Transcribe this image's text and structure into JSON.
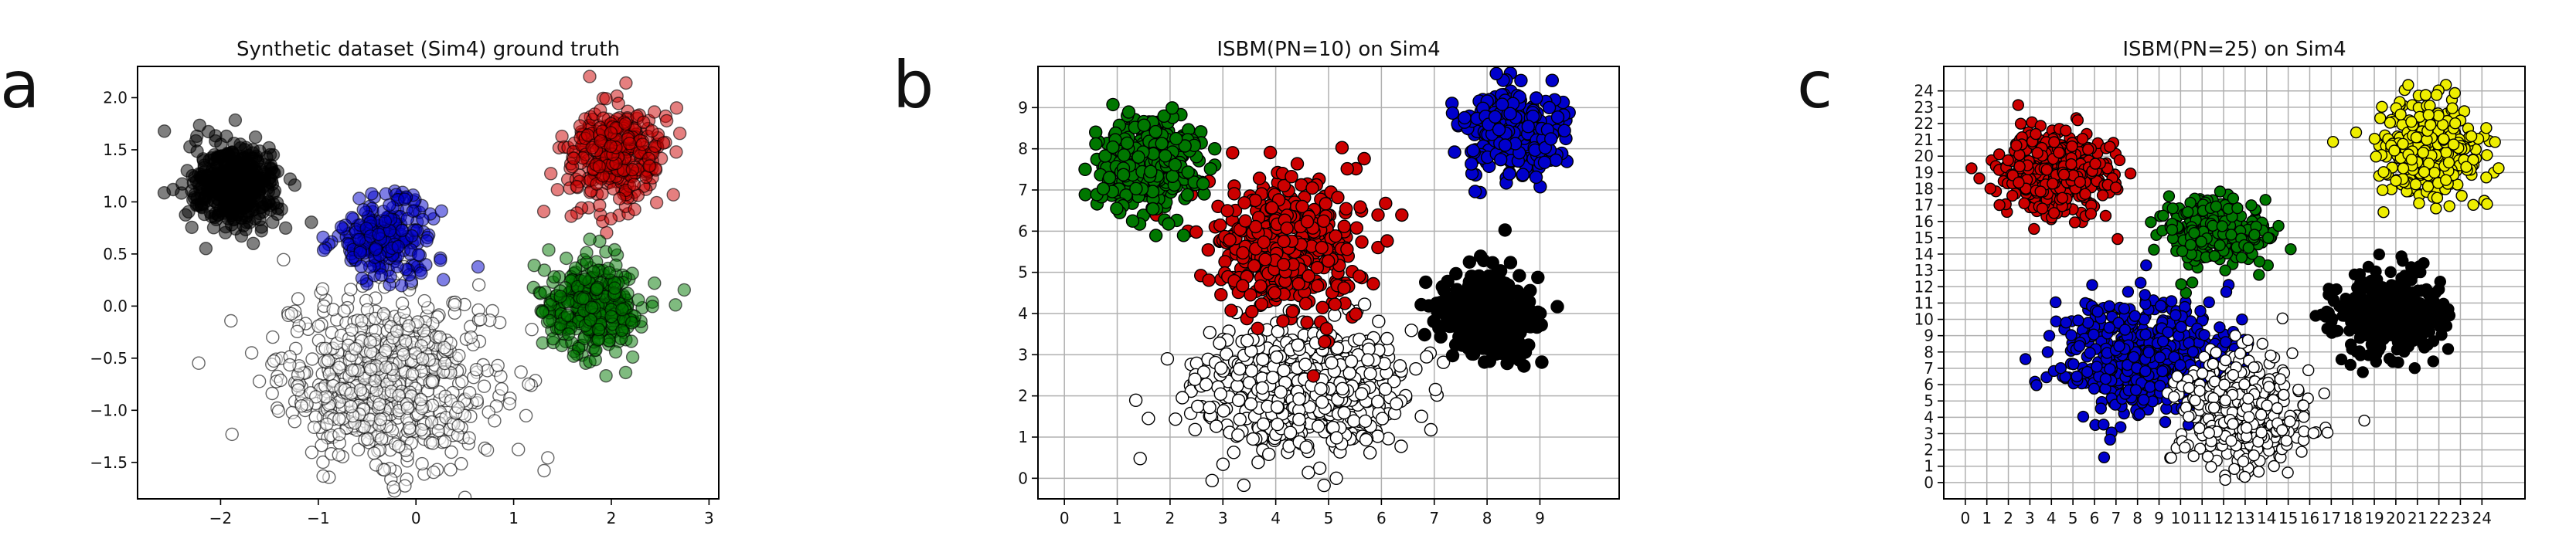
{
  "panel_labels": [
    "a",
    "b",
    "c"
  ],
  "chart_data": [
    {
      "type": "scatter",
      "title": "Synthetic dataset (Sim4)  ground truth",
      "xlabel": "",
      "ylabel": "",
      "xlim": [
        -2.85,
        3.1
      ],
      "ylim": [
        -1.85,
        2.3
      ],
      "xticks": [
        -2,
        -1,
        0,
        1,
        2,
        3
      ],
      "yticks": [
        -1.5,
        -1.0,
        -0.5,
        0.0,
        0.5,
        1.0,
        1.5,
        2.0
      ],
      "xtick_labels": [
        "−2",
        "−1",
        "0",
        "1",
        "2",
        "3"
      ],
      "ytick_labels": [
        "−1.5",
        "−1.0",
        "−0.5",
        "0.0",
        "0.5",
        "1.0",
        "1.5",
        "2.0"
      ],
      "grid": false,
      "marker_alpha": 0.5,
      "clusters": [
        {
          "color": "#ffffff",
          "center": [
            -0.3,
            -0.7
          ],
          "spread": [
            0.55,
            0.42
          ],
          "count": 650
        },
        {
          "color": "#000000",
          "center": [
            -1.85,
            1.15
          ],
          "spread": [
            0.23,
            0.2
          ],
          "count": 450
        },
        {
          "color": "#0000cc",
          "center": [
            -0.3,
            0.65
          ],
          "spread": [
            0.26,
            0.2
          ],
          "count": 230
        },
        {
          "color": "#cc0000",
          "center": [
            2.05,
            1.45
          ],
          "spread": [
            0.25,
            0.23
          ],
          "count": 330
        },
        {
          "color": "#007700",
          "center": [
            1.8,
            0.0
          ],
          "spread": [
            0.25,
            0.22
          ],
          "count": 350
        }
      ]
    },
    {
      "type": "scatter",
      "title": "ISBM(PN=10) on Sim4",
      "xlabel": "",
      "ylabel": "",
      "xlim": [
        -0.5,
        10.5
      ],
      "ylim": [
        -0.5,
        10.0
      ],
      "xticks": [
        0,
        1,
        2,
        3,
        4,
        5,
        6,
        7,
        8,
        9
      ],
      "yticks": [
        0,
        1,
        2,
        3,
        4,
        5,
        6,
        7,
        8,
        9
      ],
      "xtick_labels": [
        "0",
        "1",
        "2",
        "3",
        "4",
        "5",
        "6",
        "7",
        "8",
        "9"
      ],
      "ytick_labels": [
        "0",
        "1",
        "2",
        "3",
        "4",
        "5",
        "6",
        "7",
        "8",
        "9"
      ],
      "grid": true,
      "marker_alpha": 1.0,
      "clusters": [
        {
          "color": "#ffffff",
          "center": [
            4.5,
            2.2
          ],
          "spread": [
            0.95,
            0.75
          ],
          "count": 650
        },
        {
          "color": "#cc0000",
          "center": [
            4.2,
            5.6
          ],
          "spread": [
            0.75,
            0.85
          ],
          "count": 400
        },
        {
          "color": "#007700",
          "center": [
            1.6,
            7.6
          ],
          "spread": [
            0.45,
            0.55
          ],
          "count": 400
        },
        {
          "color": "#000000",
          "center": [
            8.0,
            4.0
          ],
          "spread": [
            0.45,
            0.5
          ],
          "count": 380
        },
        {
          "color": "#0000cc",
          "center": [
            8.5,
            8.4
          ],
          "spread": [
            0.45,
            0.5
          ],
          "count": 300
        }
      ]
    },
    {
      "type": "scatter",
      "title": "ISBM(PN=25) on Sim4",
      "xlabel": "",
      "ylabel": "",
      "xlim": [
        -1.0,
        26.0
      ],
      "ylim": [
        -1.0,
        25.5
      ],
      "xticks": [
        0,
        1,
        2,
        3,
        4,
        5,
        6,
        7,
        8,
        9,
        10,
        11,
        12,
        13,
        14,
        15,
        16,
        17,
        18,
        19,
        20,
        21,
        22,
        23,
        24
      ],
      "yticks": [
        0,
        1,
        2,
        3,
        4,
        5,
        6,
        7,
        8,
        9,
        10,
        11,
        12,
        13,
        14,
        15,
        16,
        17,
        18,
        19,
        20,
        21,
        22,
        23,
        24
      ],
      "xtick_labels": [
        "0",
        "1",
        "2",
        "3",
        "4",
        "5",
        "6",
        "7",
        "8",
        "9",
        "10",
        "11",
        "12",
        "13",
        "14",
        "15",
        "16",
        "17",
        "18",
        "19",
        "20",
        "21",
        "22",
        "23",
        "24"
      ],
      "ytick_labels": [
        "0",
        "1",
        "2",
        "3",
        "4",
        "5",
        "6",
        "7",
        "8",
        "9",
        "10",
        "11",
        "12",
        "13",
        "14",
        "15",
        "16",
        "17",
        "18",
        "19",
        "20",
        "21",
        "22",
        "23",
        "24"
      ],
      "grid": true,
      "marker_alpha": 1.0,
      "clusters": [
        {
          "color": "#0000cc",
          "center": [
            8.5,
            7.5
          ],
          "spread": [
            2.0,
            1.8
          ],
          "count": 550
        },
        {
          "color": "#ffffff",
          "center": [
            12.8,
            4.5
          ],
          "spread": [
            1.4,
            1.7
          ],
          "count": 450
        },
        {
          "color": "#cc0000",
          "center": [
            4.2,
            19.0
          ],
          "spread": [
            1.3,
            1.3
          ],
          "count": 400
        },
        {
          "color": "#007700",
          "center": [
            11.7,
            15.3
          ],
          "spread": [
            1.2,
            1.1
          ],
          "count": 250
        },
        {
          "color": "#000000",
          "center": [
            19.8,
            10.3
          ],
          "spread": [
            1.2,
            1.3
          ],
          "count": 380
        },
        {
          "color": "#eeee00",
          "center": [
            21.5,
            20.3
          ],
          "spread": [
            1.2,
            1.5
          ],
          "count": 330
        }
      ]
    }
  ]
}
